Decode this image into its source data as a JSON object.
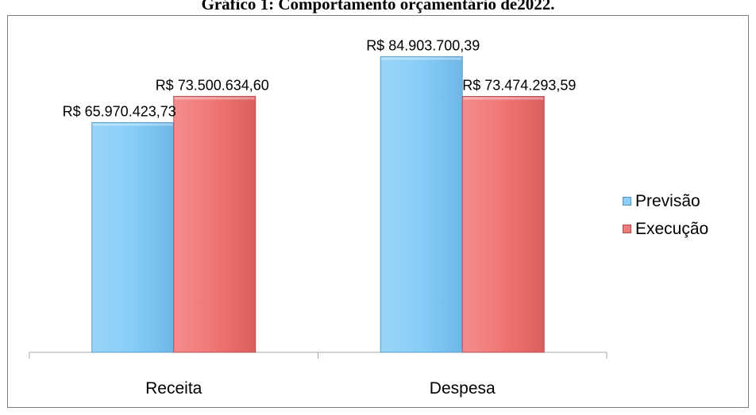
{
  "chart_data": {
    "type": "bar",
    "title": "Gráfico 1: Comportamento orçamentário  de2022.",
    "categories": [
      "Receita",
      "Despesa"
    ],
    "series": [
      {
        "name": "Previsão",
        "color": "#8ecff7",
        "values": [
          65970423.73,
          84903700.39
        ],
        "labels": [
          "R$ 65.970.423,73",
          "R$ 84.903.700,39"
        ]
      },
      {
        "name": "Execução",
        "color": "#f07b7b",
        "values": [
          73500634.6,
          73474293.59
        ],
        "labels": [
          "R$ 73.500.634,60",
          "R$ 73.474.293,59"
        ]
      }
    ],
    "ylim": [
      0,
      90000000
    ],
    "grid": false,
    "legend_position": "right"
  }
}
